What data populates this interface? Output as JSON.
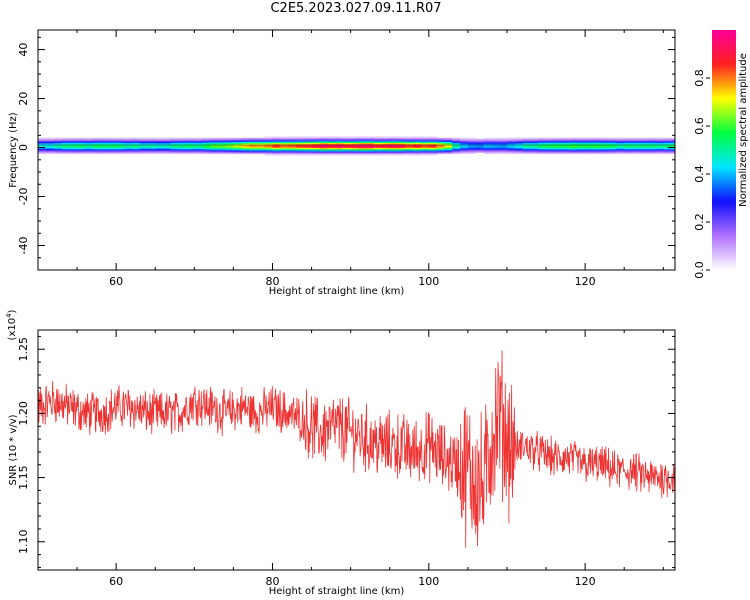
{
  "title": "C2E5.2023.027.09.11.R07",
  "colorbar": {
    "label": "Normalized spectral amplitude",
    "ticks": [
      "0.0",
      "0.2",
      "0.4",
      "0.6",
      "0.8"
    ],
    "tick_values": [
      0.0,
      0.2,
      0.4,
      0.6,
      0.8
    ],
    "range": [
      0,
      1
    ],
    "colors": [
      "#ffffff",
      "#b070ff",
      "#1010ff",
      "#00e6ff",
      "#00ff40",
      "#ffff00",
      "#ff2020",
      "#ff0099"
    ]
  },
  "chart_data": [
    {
      "type": "heatmap",
      "xlabel": "Height of straight line (km)",
      "ylabel": "Frequency (Hz)",
      "xlim": [
        50,
        131.5
      ],
      "ylim": [
        -50,
        48
      ],
      "xticks": [
        "60",
        "80",
        "100",
        "120"
      ],
      "xtick_values": [
        60,
        80,
        100,
        120
      ],
      "yticks": [
        "40",
        "20",
        "0",
        "-20",
        "-40"
      ],
      "ytick_values": [
        40,
        20,
        0,
        -20,
        -40
      ],
      "band_center_hz": 1,
      "band_halfwidth_hz": 5,
      "amplitude_profile": {
        "x": [
          50,
          55,
          60,
          65,
          70,
          75,
          80,
          85,
          90,
          95,
          100,
          102,
          104,
          106,
          108,
          110,
          112,
          115,
          120,
          125,
          131.5
        ],
        "peak": [
          0.45,
          0.55,
          0.55,
          0.5,
          0.55,
          0.7,
          0.85,
          0.92,
          0.95,
          0.93,
          0.9,
          0.8,
          0.45,
          0.38,
          0.4,
          0.42,
          0.5,
          0.6,
          0.6,
          0.55,
          0.55
        ]
      }
    },
    {
      "type": "line",
      "xlabel": "Height of straight line (km)",
      "ylabel": "SNR (10 * v/v)",
      "y_multiplier": "(x10^4)",
      "xlim": [
        50,
        131.5
      ],
      "ylim": [
        1.078,
        1.265
      ],
      "xticks": [
        "60",
        "80",
        "100",
        "120"
      ],
      "xtick_values": [
        60,
        80,
        100,
        120
      ],
      "yticks": [
        "1.25",
        "1.20",
        "1.15",
        "1.10"
      ],
      "ytick_values": [
        1.25,
        1.2,
        1.15,
        1.1
      ],
      "series": [
        {
          "color": "#ee3333",
          "x": [
            50,
            52,
            54,
            56,
            58,
            60,
            62,
            64,
            66,
            68,
            70,
            72,
            74,
            76,
            78,
            80,
            82,
            84,
            86,
            88,
            90,
            92,
            94,
            96,
            98,
            100,
            102,
            104,
            105,
            106,
            107,
            108,
            109,
            110,
            111,
            112,
            114,
            116,
            118,
            120,
            122,
            124,
            126,
            128,
            130,
            131.5
          ],
          "y": [
            1.205,
            1.21,
            1.205,
            1.2,
            1.2,
            1.205,
            1.205,
            1.2,
            1.2,
            1.2,
            1.21,
            1.205,
            1.2,
            1.205,
            1.2,
            1.205,
            1.2,
            1.195,
            1.185,
            1.19,
            1.185,
            1.18,
            1.175,
            1.175,
            1.17,
            1.175,
            1.165,
            1.16,
            1.155,
            1.15,
            1.14,
            1.18,
            1.2,
            1.18,
            1.17,
            1.175,
            1.17,
            1.165,
            1.165,
            1.16,
            1.16,
            1.155,
            1.155,
            1.15,
            1.15,
            1.15
          ]
        }
      ]
    }
  ]
}
